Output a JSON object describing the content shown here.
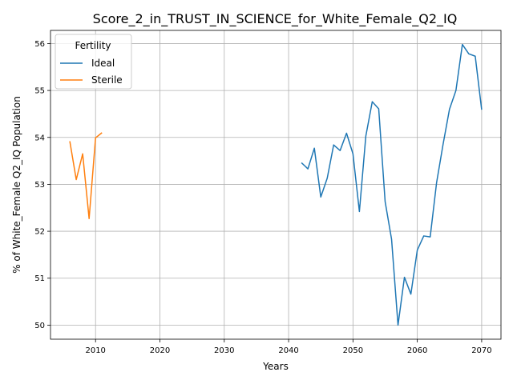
{
  "chart_data": {
    "type": "line",
    "title": "Score_2_in_TRUST_IN_SCIENCE_for_White_Female_Q2_IQ",
    "xlabel": "Years",
    "ylabel": "% of White_Female Q2_IQ Population",
    "xlim": [
      2003,
      2073
    ],
    "ylim": [
      49.7,
      56.28
    ],
    "xticks": [
      2010,
      2020,
      2030,
      2040,
      2050,
      2060,
      2070
    ],
    "yticks": [
      50,
      51,
      52,
      53,
      54,
      55,
      56
    ],
    "grid": true,
    "legend": {
      "title": "Fertility",
      "placement": "top-left"
    },
    "series": [
      {
        "name": "Ideal",
        "color": "#1f77b4",
        "x": [
          2042,
          2043,
          2044,
          2045,
          2046,
          2047,
          2048,
          2049,
          2050,
          2051,
          2052,
          2053,
          2054,
          2055,
          2056,
          2057,
          2058,
          2059,
          2060,
          2061,
          2062,
          2063,
          2064,
          2065,
          2066,
          2067,
          2068,
          2069,
          2070
        ],
        "y": [
          53.46,
          53.33,
          53.77,
          52.73,
          53.13,
          53.84,
          53.72,
          54.09,
          53.65,
          52.42,
          54.03,
          54.76,
          54.61,
          52.63,
          51.83,
          50.0,
          51.02,
          50.66,
          51.6,
          51.9,
          51.88,
          53.04,
          53.85,
          54.6,
          55.0,
          55.98,
          55.78,
          55.73,
          54.59
        ]
      },
      {
        "name": "Sterile",
        "color": "#ff7f0e",
        "x": [
          2006,
          2007,
          2008,
          2009,
          2010,
          2011
        ],
        "y": [
          53.92,
          53.1,
          53.65,
          52.27,
          53.99,
          54.1
        ]
      }
    ]
  }
}
